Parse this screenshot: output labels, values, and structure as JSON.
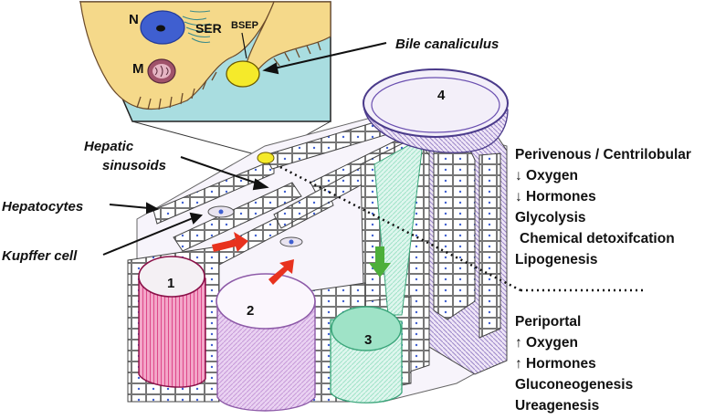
{
  "inset": {
    "labels": {
      "nucleus": "N",
      "ser": "SER",
      "mitochondrion": "M",
      "bsep": "BSEP"
    }
  },
  "callouts": {
    "bile_canaliculus": "Bile canaliculus",
    "hepatic_sinusoids_line1": "Hepatic",
    "hepatic_sinusoids_line2": "sinusoids",
    "hepatocytes": "Hepatocytes",
    "kupffer_cell": "Kupffer cell"
  },
  "vessel_numbers": [
    "1",
    "2",
    "3",
    "4"
  ],
  "zones": {
    "perivenous": [
      "Perivenous / Centrilobular",
      "↓ Oxygen",
      "↓ Hormones",
      "Glycolysis",
      "Chemical detoxifcation",
      "Lipogenesis"
    ],
    "periportal": [
      "Periportal",
      "↑ Oxygen",
      "↑ Hormones",
      "Gluconeogenesis",
      "Ureagenesis"
    ]
  },
  "colors": {
    "inset_background": "#a9dde0",
    "hepatocyte_cytoplasm": "#f5d98a",
    "nucleus": "#3f5fd0",
    "bile_canaliculus": "#f5ea2a",
    "flow_arrow_red": "#e8321e",
    "flow_arrow_green": "#4caf3a",
    "portal_vein": "#e0348a",
    "hepatic_artery": "#c89ad8",
    "bile_duct": "#8fe0c0",
    "central_vein": "#6a4fb0"
  }
}
